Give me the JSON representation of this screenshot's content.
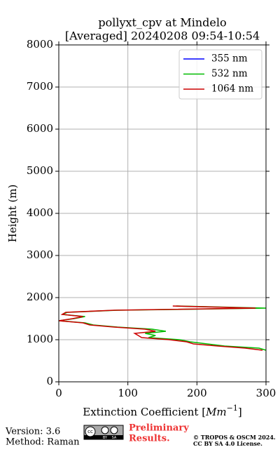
{
  "chart_data": {
    "type": "profile",
    "title": "pollyxt_cpv at Mindelo",
    "subtitle": "[Averaged] 20240208 09:54-10:54",
    "xlabel": [
      "Extinction Coefficient [",
      "Mm",
      "−1",
      "]"
    ],
    "ylabel": "Height (m)",
    "xlim": [
      0,
      300
    ],
    "xticks": [
      0,
      100,
      200,
      300
    ],
    "ylim": [
      0,
      8000
    ],
    "yticks": [
      0,
      1000,
      2000,
      3000,
      4000,
      5000,
      6000,
      7000,
      8000
    ],
    "grid": true,
    "legend": "upper right",
    "heights": [
      750,
      800,
      850,
      900,
      950,
      1000,
      1050,
      1100,
      1150,
      1200,
      1250,
      1300,
      1350,
      1400,
      1450,
      1500,
      1550,
      1600,
      1650,
      1700,
      1750,
      1800
    ],
    "series": [
      {
        "name": "355 nm",
        "color": "#0000ff",
        "values": [
          null,
          null,
          null,
          null,
          null,
          null,
          null,
          null,
          null,
          null,
          null,
          null,
          null,
          null,
          null,
          null,
          null,
          null,
          null,
          null,
          null,
          null
        ]
      },
      {
        "name": "532 nm",
        "color": "#00bb00",
        "values": [
          300,
          290,
          240,
          215,
          190,
          175,
          130,
          140,
          125,
          155,
          135,
          85,
          50,
          38,
          0,
          22,
          38,
          5,
          12,
          85,
          300,
          170
        ]
      },
      {
        "name": "1064 nm",
        "color": "#cc0000",
        "values": [
          295,
          270,
          230,
          195,
          185,
          160,
          120,
          115,
          110,
          140,
          125,
          80,
          45,
          35,
          0,
          20,
          35,
          5,
          10,
          80,
          285,
          165
        ]
      }
    ]
  },
  "footer": {
    "version": "Version: 3.6",
    "method": "Method: Raman",
    "logo": [
      "cc",
      "BY",
      "SA"
    ],
    "notice": [
      "Preliminary",
      "Results."
    ],
    "copyright": [
      "© TROPOS & OSCM 2024.",
      "CC BY SA 4.0 License."
    ]
  }
}
